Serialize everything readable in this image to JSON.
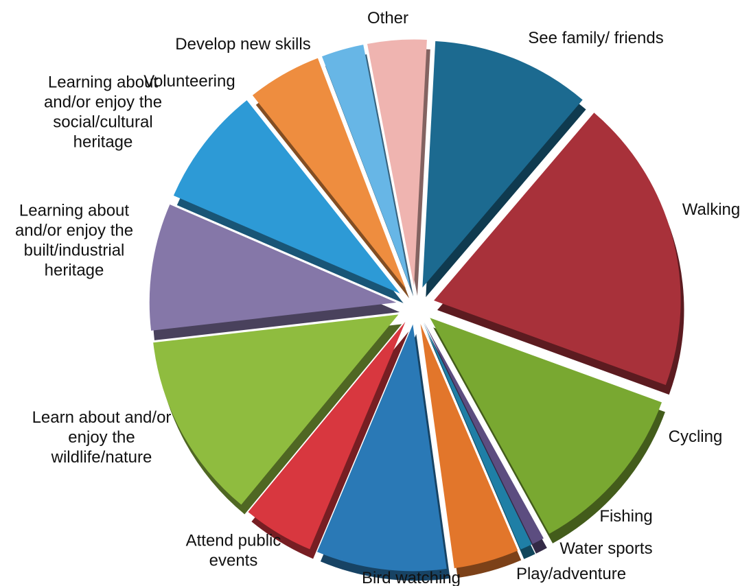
{
  "chart_data": {
    "type": "pie",
    "title": "",
    "slices": [
      {
        "label": [
          "See family/ friends"
        ],
        "value": 10.5,
        "color": "#1c6a90"
      },
      {
        "label": [
          "Walking"
        ],
        "value": 19.5,
        "color": "#a8313a"
      },
      {
        "label": [
          "Cycling"
        ],
        "value": 11.5,
        "color": "#79a831"
      },
      {
        "label": [
          "Fishing"
        ],
        "value": 0.8,
        "color": "#5c4d80"
      },
      {
        "label": [
          "Water sports"
        ],
        "value": 0.8,
        "color": "#1f7fa6"
      },
      {
        "label": [
          "Play/adventure"
        ],
        "value": 4.3,
        "color": "#e2762b"
      },
      {
        "label": [
          "Bird watching"
        ],
        "value": 8.6,
        "color": "#2a79b6"
      },
      {
        "label": [
          "Attend public",
          "events"
        ],
        "value": 4.7,
        "color": "#d8373f"
      },
      {
        "label": [
          "Learn about and/or",
          "enjoy the",
          "wildlife/nature"
        ],
        "value": 12.3,
        "color": "#8fbc3f"
      },
      {
        "label": [
          "Learning about",
          "and/or enjoy the",
          "built/industrial",
          "heritage"
        ],
        "value": 8.4,
        "color": "#8577a8"
      },
      {
        "label": [
          "Learning about",
          "and/or enjoy the",
          "social/cultural",
          "heritage"
        ],
        "value": 7.9,
        "color": "#2d9ad6"
      },
      {
        "label": [
          "Volunteering"
        ],
        "value": 4.9,
        "color": "#ee8d3f"
      },
      {
        "label": [
          "Develop new skills"
        ],
        "value": 2.8,
        "color": "#67b6e6"
      },
      {
        "label": [
          "Other"
        ],
        "value": 3.9,
        "color": "#efb4b0"
      }
    ]
  }
}
